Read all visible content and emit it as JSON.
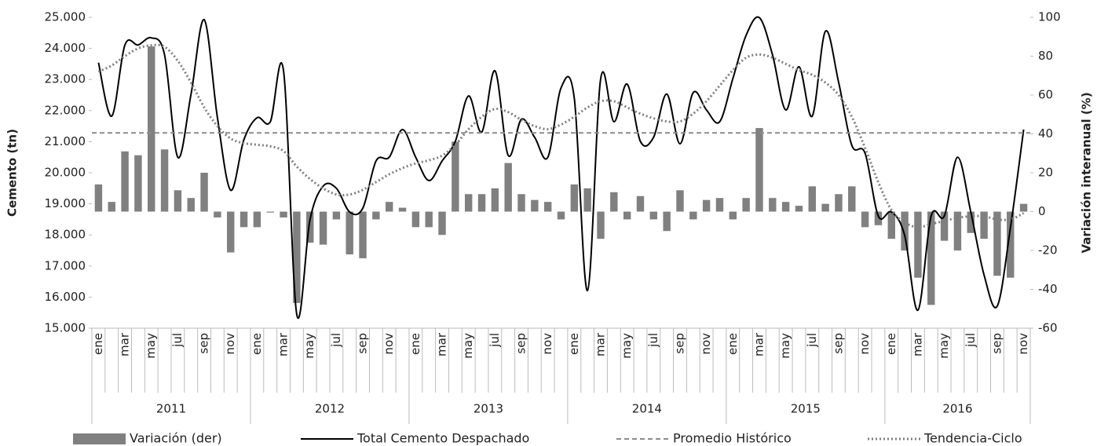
{
  "chart_data": {
    "type": "combo",
    "y_label": "Cemento (tn)",
    "y2_label": "Variación interanual (%)",
    "categories": [
      "ene",
      null,
      "mar",
      null,
      "may",
      null,
      "jul",
      null,
      "sep",
      null,
      "nov",
      null,
      "ene",
      null,
      "mar",
      null,
      "may",
      null,
      "jul",
      null,
      "sep",
      null,
      "nov",
      null,
      "ene",
      null,
      "mar",
      null,
      "may",
      null,
      "jul",
      null,
      "sep",
      null,
      "nov",
      null,
      "ene",
      null,
      "mar",
      null,
      "may",
      null,
      "jul",
      null,
      "sep",
      null,
      "nov",
      null,
      "ene",
      null,
      "mar",
      null,
      "may",
      null,
      "jul",
      null,
      "sep",
      null,
      "nov",
      null,
      "ene",
      null,
      "mar",
      null,
      "may",
      null,
      "jul",
      null,
      "sep",
      null,
      "nov"
    ],
    "x_groups": [
      "2011",
      "2012",
      "2013",
      "2014",
      "2015",
      "2016"
    ],
    "ylim": [
      15000,
      25000
    ],
    "yticks": [
      {
        "value": 15000,
        "label": "15.000"
      },
      {
        "value": 16000,
        "label": "16.000"
      },
      {
        "value": 17000,
        "label": "17.000"
      },
      {
        "value": 18000,
        "label": "18.000"
      },
      {
        "value": 19000,
        "label": "19.000"
      },
      {
        "value": 20000,
        "label": "20.000"
      },
      {
        "value": 21000,
        "label": "21.000"
      },
      {
        "value": 22000,
        "label": "22.000"
      },
      {
        "value": 23000,
        "label": "23.000"
      },
      {
        "value": 24000,
        "label": "24.000"
      },
      {
        "value": 25000,
        "label": "25.000"
      }
    ],
    "y2lim": [
      -60,
      100
    ],
    "y2ticks": [
      -60,
      -40,
      -20,
      0,
      20,
      40,
      60,
      80,
      100
    ],
    "series": [
      {
        "name": "Variación (der)",
        "kind": "bar",
        "axis": "y2",
        "color": "#808080",
        "values": [
          14,
          5,
          31,
          29,
          85,
          32,
          11,
          7,
          20,
          -3,
          -21,
          -8,
          -8,
          -0.5,
          -3,
          -47,
          -16,
          -17,
          -4,
          -22,
          -24,
          -4,
          5,
          2,
          -8,
          -8,
          -12,
          36,
          9,
          9,
          12,
          25,
          9,
          6,
          5,
          -4,
          14,
          12,
          -14,
          10,
          -4,
          8,
          -4,
          -10,
          11,
          -4,
          6,
          7,
          -4,
          7,
          43,
          7,
          5,
          3,
          13,
          4,
          9,
          13,
          -8,
          -7,
          -14,
          -20,
          -34,
          -48,
          -15,
          -20,
          -11,
          -14,
          -33,
          -34,
          4
        ]
      },
      {
        "name": "Total Cemento Despachado",
        "kind": "line",
        "color": "#000000",
        "values": [
          23540,
          21820,
          24110,
          24110,
          24340,
          23790,
          20500,
          22520,
          24920,
          21770,
          19440,
          21060,
          21770,
          21640,
          23280,
          15450,
          18480,
          19570,
          19500,
          18740,
          18860,
          20380,
          20500,
          21390,
          20500,
          19750,
          20380,
          21010,
          22470,
          21310,
          23280,
          20560,
          21720,
          21140,
          20500,
          22730,
          22400,
          16210,
          23030,
          21640,
          22850,
          21010,
          21140,
          22530,
          20930,
          22580,
          22020,
          21640,
          23030,
          24420,
          24990,
          23790,
          22020,
          23410,
          21820,
          24550,
          22910,
          20880,
          20630,
          18610,
          18740,
          17980,
          15580,
          18610,
          18610,
          20500,
          18740,
          16720,
          15710,
          18230,
          21390
        ]
      },
      {
        "name": "Promedio Histórico",
        "kind": "hline",
        "dash": "dashed",
        "color": "#8c8c8c",
        "value": 21280
      },
      {
        "name": "Tendencia-Ciclo",
        "kind": "line",
        "dash": "dotted",
        "color": "#7f7f7f",
        "values": [
          23250,
          23450,
          23750,
          24000,
          24100,
          24050,
          23600,
          22900,
          22100,
          21500,
          21100,
          20950,
          20900,
          20850,
          20700,
          20200,
          19800,
          19500,
          19300,
          19300,
          19450,
          19700,
          19950,
          20150,
          20300,
          20400,
          20550,
          20900,
          21400,
          21800,
          22050,
          21950,
          21700,
          21500,
          21400,
          21550,
          21800,
          22100,
          22300,
          22300,
          22100,
          21900,
          21750,
          21650,
          21650,
          21900,
          22300,
          22800,
          23300,
          23700,
          23800,
          23700,
          23500,
          23300,
          23150,
          22900,
          22500,
          21800,
          20800,
          19700,
          18800,
          18400,
          18250,
          18350,
          18450,
          18550,
          18600,
          18600,
          18500,
          18500,
          18700
        ]
      }
    ]
  }
}
